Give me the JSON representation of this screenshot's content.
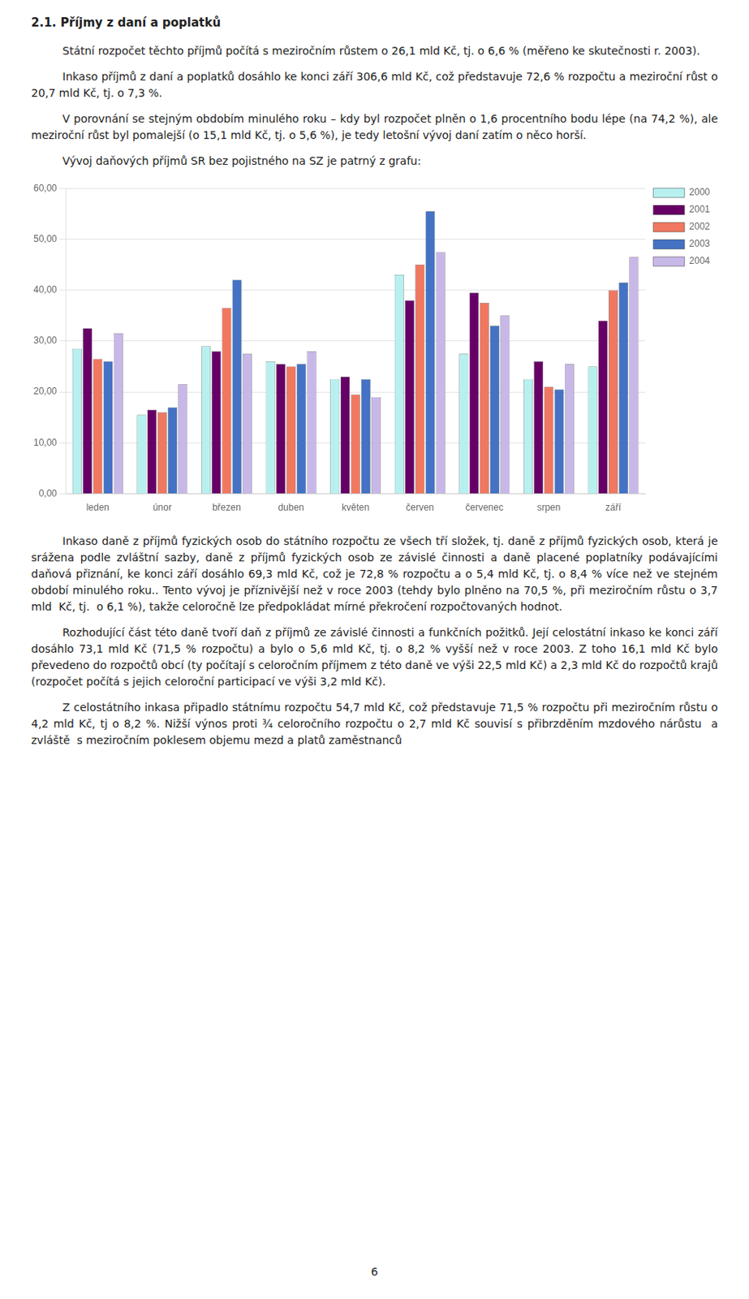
{
  "chart_data": {
    "type": "bar",
    "categories": [
      "leden",
      "únor",
      "březen",
      "duben",
      "květen",
      "červen",
      "červenec",
      "srpen",
      "září"
    ],
    "series": [
      {
        "name": "2000",
        "color": "#b8f0f0",
        "values": [
          28.5,
          15.5,
          29.0,
          26.0,
          22.5,
          43.0,
          27.5,
          22.5,
          25.0
        ]
      },
      {
        "name": "2001",
        "color": "#660066",
        "values": [
          32.5,
          16.5,
          28.0,
          25.5,
          23.0,
          38.0,
          39.5,
          26.0,
          34.0
        ]
      },
      {
        "name": "2002",
        "color": "#f07860",
        "values": [
          26.5,
          16.0,
          36.5,
          25.0,
          19.5,
          45.0,
          37.5,
          21.0,
          40.0
        ]
      },
      {
        "name": "2003",
        "color": "#4472c4",
        "values": [
          26.0,
          17.0,
          42.0,
          25.5,
          22.5,
          55.5,
          33.0,
          20.5,
          41.5
        ]
      },
      {
        "name": "2004",
        "color": "#c8b8e8",
        "values": [
          31.5,
          21.5,
          27.5,
          28.0,
          19.0,
          47.5,
          35.0,
          25.5,
          46.5
        ]
      }
    ],
    "ylim": [
      0,
      60
    ],
    "yticks": [
      {
        "value": 0,
        "label": "0,00"
      },
      {
        "value": 10,
        "label": "10,00"
      },
      {
        "value": 20,
        "label": "20,00"
      },
      {
        "value": 30,
        "label": "30,00"
      },
      {
        "value": 40,
        "label": "40,00"
      },
      {
        "value": 50,
        "label": "50,00"
      },
      {
        "value": 60,
        "label": "60,00"
      }
    ],
    "grid": true,
    "legend": "right",
    "annotations": [
      "2.1. Příjmy z daní a poplatků",
      "Státní rozpočet těchto příjmů počítá s meziročním růstem o 26,1 mld Kč, tj. o 6,6 % (měřeno ke skutečnosti r. 2003).",
      "Inkaso příjmů z daní a poplatků dosáhlo ke konci září 306,6 mld Kč, což představuje 72,6 % rozpočtu a meziroční růst o 20,7 mld Kč, tj. o 7,3 %.",
      "V porovnání se stejným obdobím minulého roku – kdy byl rozpočet plněn o 1,6 procentního bodu lépe (na 74,2 %), ale meziroční růst byl pomalejší (o 15,1 mld Kč, tj. o 5,6 %), je tedy letošní vývoj daní zatím o něco horší.",
      "Vývoj daňových příjmů SR bez pojistného na SZ je patrný z grafu:",
      "Inkaso daně z příjmů fyzických osob do státního rozpočtu ze všech tří složek, tj. daně z příjmů fyzických osob, která je srážena podle zvláštní sazby, daně z příjmů fyzických osob ze závislé činnosti a daně placené poplatníky podávajícími daňová přiznání, ke konci září dosáhlo 69,3 mld Kč, což je 72,8 % rozpočtu a o 5,4 mld Kč, tj. o 8,4 % více než ve stejném období minulého roku.. Tento vývoj je příznivější než v roce 2003 (tehdy bylo plněno na 70,5 %, při meziročním růstu o 3,7 mld  Kč, tj.  o 6,1 %), takže celoročně lze předpokládat mírné překročení rozpočtovaných hodnot.",
      "Rozhodující část této daně tvoří daň z příjmů ze závislé činnosti a funkčních požitků. Její celostátní inkaso ke konci září dosáhlo 73,1 mld Kč (71,5 % rozpočtu) a bylo o 5,6 mld Kč, tj. o 8,2 % vyšší než v roce 2003. Z toho 16,1 mld Kč bylo převedeno do rozpočtů obcí (ty počítají s celoročním příjmem z této daně ve výši 22,5 mld Kč) a 2,3 mld Kč do rozpočtů krajů (rozpočet počítá s jejich celoroční participací ve výši 3,2 mld Kč).",
      "Z celostátního inkasa připadlo státnímu rozpočtu 54,7 mld Kč, což představuje 71,5 % rozpočtu při meziročním růstu o 4,2 mld Kč, tj o 8,2 %. Nižší výnos proti ¾ celoročního rozpočtu o 2,7 mld Kč souvisí s přibrzděním mzdového nárůstu  a  zvláště  s meziročním poklesem objemu mezd a platů zaměstnanců",
      "6"
    ]
  }
}
